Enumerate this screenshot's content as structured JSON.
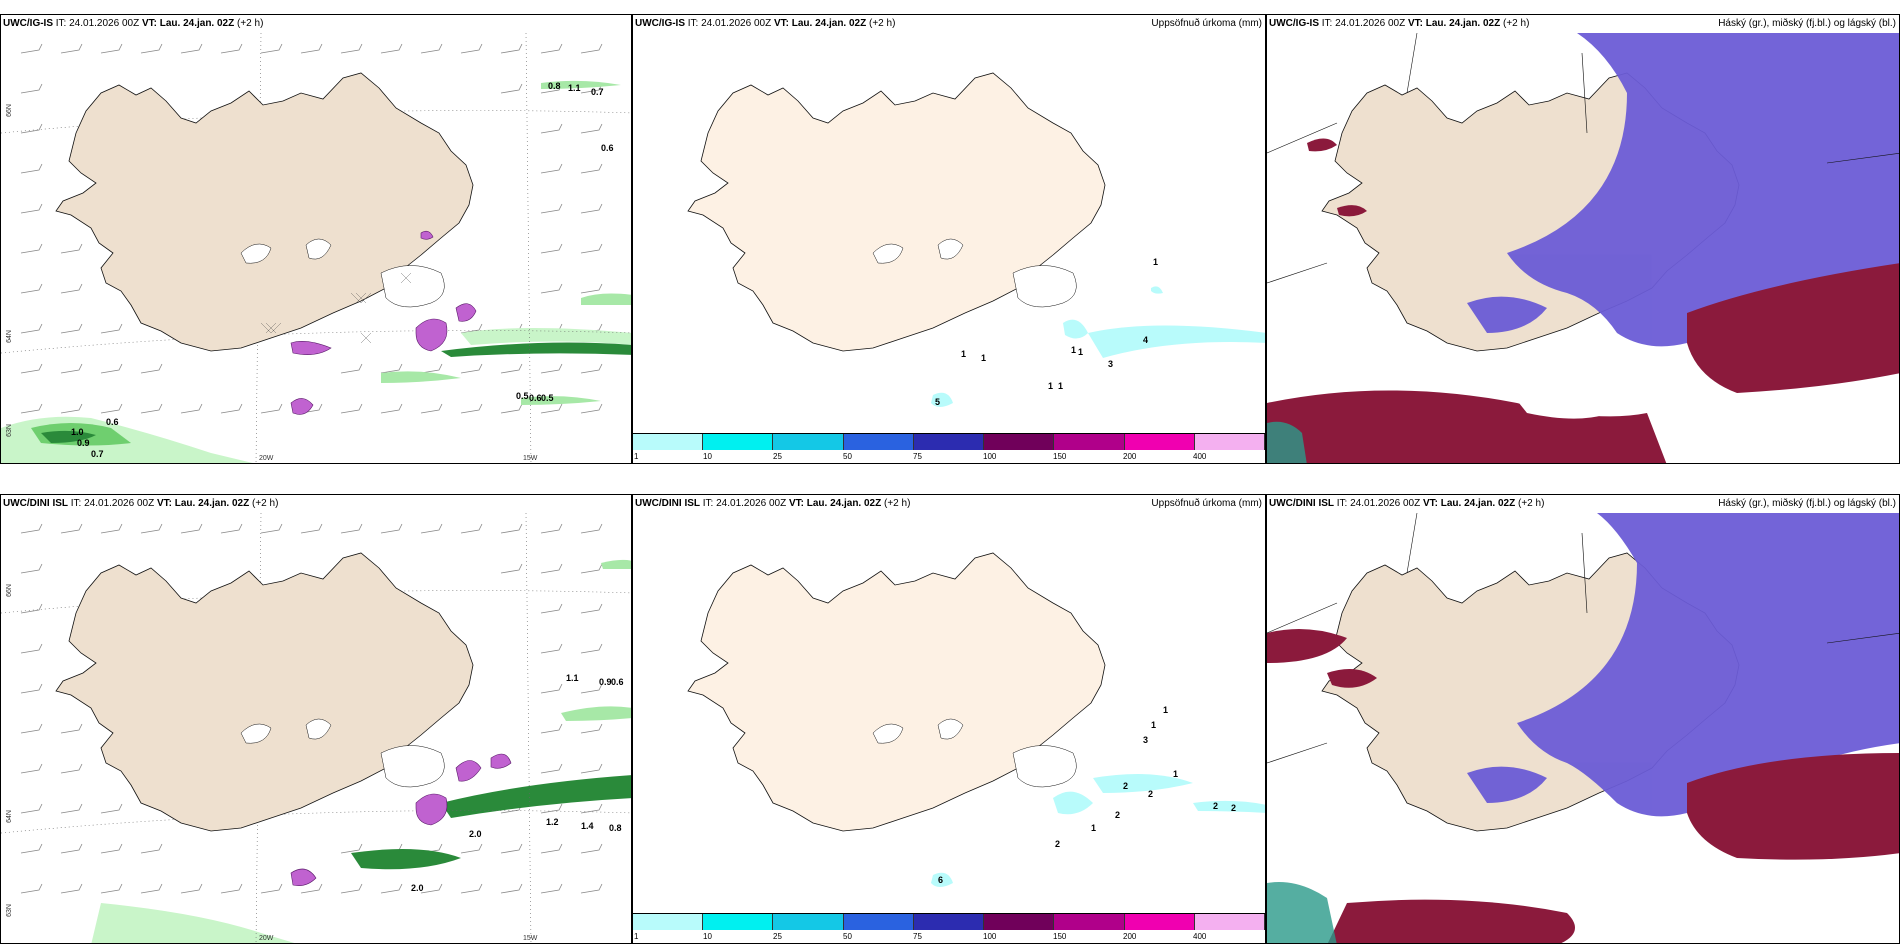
{
  "panels": [
    {
      "model": "UWC/IG-IS",
      "it_label": "IT:",
      "it": "24.01.2026 00Z",
      "vt_label": "VT:",
      "vt": "Lau. 24.jan. 02Z",
      "lead": "(+2 h)",
      "right": ""
    },
    {
      "model": "UWC/IG-IS",
      "it_label": "IT:",
      "it": "24.01.2026 00Z",
      "vt_label": "VT:",
      "vt": "Lau. 24.jan. 02Z",
      "lead": "(+2 h)",
      "right": "Uppsöfnuð úrkoma (mm)"
    },
    {
      "model": "UWC/IG-IS",
      "it_label": "IT:",
      "it": "24.01.2026 00Z",
      "vt_label": "VT:",
      "vt": "Lau. 24.jan. 02Z",
      "lead": "(+2 h)",
      "right": "Háský (gr.), miðský (fj.bl.) og lágský (bl.)"
    },
    {
      "model": "UWC/DINI ISL",
      "it_label": "IT:",
      "it": "24.01.2026 00Z",
      "vt_label": "VT:",
      "vt": "Lau. 24.jan. 02Z",
      "lead": "(+2 h)",
      "right": ""
    },
    {
      "model": "UWC/DINI ISL",
      "it_label": "IT:",
      "it": "24.01.2026 00Z",
      "vt_label": "VT:",
      "vt": "Lau. 24.jan. 02Z",
      "lead": "(+2 h)",
      "right": "Uppsöfnuð úrkoma (mm)"
    },
    {
      "model": "UWC/DINI ISL",
      "it_label": "IT:",
      "it": "24.01.2026 00Z",
      "vt_label": "VT:",
      "vt": "Lau. 24.jan. 02Z",
      "lead": "(+2 h)",
      "right": "Háský (gr.), miðský (fj.bl.) og lágský (bl.)"
    }
  ],
  "coords": {
    "lon_20": "20W",
    "lon_15": "15W",
    "lat_66": "66N",
    "lat_64": "64N",
    "lat_63": "63N"
  },
  "legend": {
    "ticks": [
      "1",
      "10",
      "25",
      "50",
      "75",
      "100",
      "150",
      "200",
      "400"
    ],
    "colors": [
      "#b8fbfb",
      "#00f0f0",
      "#14c8e6",
      "#2a62e0",
      "#2c2cb0",
      "#70005a",
      "#b0008a",
      "#f000b0",
      "#f4b0f0"
    ]
  },
  "values": {
    "ig_wind": [
      "0.8",
      "1.1",
      "0.7",
      "0.6",
      "1.0",
      "0.9",
      "0.7",
      "0.6",
      "0.5",
      "0.6",
      "0.5"
    ],
    "ig_precip": [
      "1",
      "1",
      "1",
      "1",
      "3",
      "4",
      "1",
      "1",
      "5",
      "1"
    ],
    "dini_wind": [
      "1.1",
      "0.9",
      "0.6",
      "1.2",
      "1.4",
      "0.8",
      "2.0",
      "2.0"
    ],
    "dini_precip": [
      "1",
      "1",
      "3",
      "1",
      "2",
      "2",
      "2",
      "1",
      "2",
      "2",
      "2",
      "6"
    ]
  },
  "colors": {
    "land": "#eee0cf",
    "land_light": "#fdf1e4",
    "high_cloud": "#6b5cd6",
    "mid_cloud": "#8b1a3c",
    "low_cloud": "#4fa0e8",
    "wind_green": "#7fe07f"
  }
}
